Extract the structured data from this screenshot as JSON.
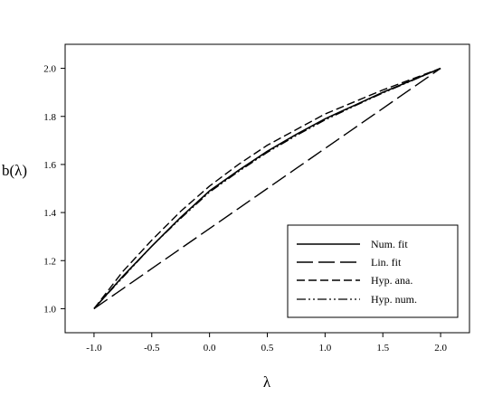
{
  "chart_data": {
    "type": "line",
    "title": "",
    "xlabel": "λ",
    "ylabel": "b(λ)",
    "xlim": [
      -1.25,
      2.25
    ],
    "ylim": [
      0.9,
      2.1
    ],
    "xticks": [
      -1.0,
      -0.5,
      0.0,
      0.5,
      1.0,
      1.5,
      2.0
    ],
    "xtick_labels": [
      "-1.0",
      "-0.5",
      "0.0",
      "0.5",
      "1.0",
      "1.5",
      "2.0"
    ],
    "yticks": [
      1.0,
      1.2,
      1.4,
      1.6,
      1.8,
      2.0
    ],
    "ytick_labels": [
      "1.0",
      "1.2",
      "1.4",
      "1.6",
      "1.8",
      "2.0"
    ],
    "grid": false,
    "legend_position": "bottom-right",
    "x": [
      -1.0,
      -0.75,
      -0.5,
      -0.25,
      0.0,
      0.25,
      0.5,
      0.75,
      1.0,
      1.25,
      1.5,
      1.75,
      2.0
    ],
    "series": [
      {
        "name": "Num. fit",
        "style": "solid",
        "values": [
          1.0,
          1.135,
          1.26,
          1.38,
          1.49,
          1.575,
          1.655,
          1.725,
          1.79,
          1.845,
          1.9,
          1.95,
          2.0
        ]
      },
      {
        "name": "Lin. fit",
        "style": "long-dash",
        "values": [
          1.0,
          1.0833,
          1.1667,
          1.25,
          1.3333,
          1.4167,
          1.5,
          1.5833,
          1.6667,
          1.75,
          1.8333,
          1.9167,
          2.0
        ]
      },
      {
        "name": "Hyp. ana.",
        "style": "dash",
        "values": [
          1.0,
          1.155,
          1.285,
          1.405,
          1.51,
          1.6,
          1.68,
          1.745,
          1.81,
          1.86,
          1.91,
          1.955,
          2.0
        ]
      },
      {
        "name": "Hyp. num.",
        "style": "dash-dot-dot",
        "values": [
          1.0,
          1.13,
          1.26,
          1.375,
          1.485,
          1.57,
          1.65,
          1.72,
          1.785,
          1.842,
          1.897,
          1.948,
          2.0
        ]
      }
    ]
  }
}
